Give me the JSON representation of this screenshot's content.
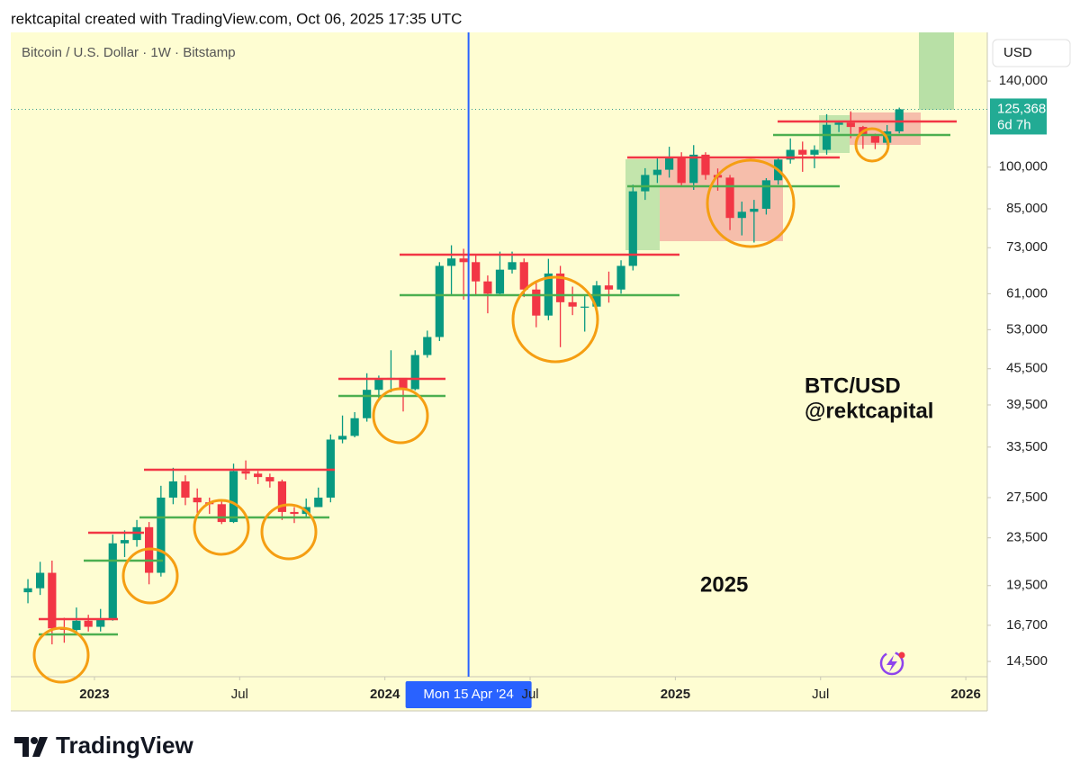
{
  "header": "rektcapital created with TradingView.com, Oct 06, 2025 17:35 UTC",
  "logo": "TradingView",
  "chart_data": {
    "type": "candlestick",
    "title": "Bitcoin / U.S. Dollar · 1W · Bitstamp",
    "currency": "USD",
    "log_scale": true,
    "up_color": "#089981",
    "down_color": "#f23645",
    "xlim": [
      2022.712,
      2026.074
    ],
    "xticks": [
      {
        "value": 2023,
        "label": "2023"
      },
      {
        "value": 2023.5,
        "label": "Jul"
      },
      {
        "value": 2024,
        "label": "2024"
      },
      {
        "value": 2024.5,
        "label": "Jul"
      },
      {
        "value": 2025,
        "label": "2025"
      },
      {
        "value": 2025.5,
        "label": "Jul"
      },
      {
        "value": 2026,
        "label": "2026"
      }
    ],
    "ylim": [
      13660,
      169300
    ],
    "yticks": [
      {
        "value": 140000,
        "label": "140,000"
      },
      {
        "value": 100000,
        "label": "100,000"
      },
      {
        "value": 85000,
        "label": "85,000"
      },
      {
        "value": 73000,
        "label": "73,000"
      },
      {
        "value": 61000,
        "label": "61,000"
      },
      {
        "value": 53000,
        "label": "53,000"
      },
      {
        "value": 45500,
        "label": "45,500"
      },
      {
        "value": 39500,
        "label": "39,500"
      },
      {
        "value": 33500,
        "label": "33,500"
      },
      {
        "value": 27500,
        "label": "27,500"
      },
      {
        "value": 23500,
        "label": "23,500"
      },
      {
        "value": 19500,
        "label": "19,500"
      },
      {
        "value": 16700,
        "label": "16,700"
      },
      {
        "value": 14500,
        "label": "14,500"
      }
    ],
    "x": [
      2022.771,
      2022.813,
      2022.854,
      2022.896,
      2022.938,
      2022.979,
      2023.021,
      2023.063,
      2023.104,
      2023.146,
      2023.188,
      2023.229,
      2023.271,
      2023.313,
      2023.354,
      2023.396,
      2023.438,
      2023.479,
      2023.521,
      2023.563,
      2023.604,
      2023.646,
      2023.688,
      2023.729,
      2023.771,
      2023.813,
      2023.854,
      2023.896,
      2023.938,
      2023.979,
      2024.021,
      2024.063,
      2024.104,
      2024.146,
      2024.188,
      2024.229,
      2024.271,
      2024.313,
      2024.354,
      2024.396,
      2024.438,
      2024.479,
      2024.521,
      2024.563,
      2024.604,
      2024.646,
      2024.688,
      2024.729,
      2024.771,
      2024.813,
      2024.854,
      2024.896,
      2024.938,
      2024.979,
      2025.021,
      2025.063,
      2025.104,
      2025.146,
      2025.188,
      2025.229,
      2025.271,
      2025.313,
      2025.354,
      2025.396,
      2025.438,
      2025.479,
      2025.521,
      2025.563,
      2025.604,
      2025.646,
      2025.688,
      2025.729,
      2025.771
    ],
    "open": [
      19000,
      19300,
      20500,
      16500,
      16400,
      17000,
      16600,
      17100,
      23000,
      23300,
      24500,
      20500,
      27500,
      29300,
      27500,
      27000,
      26800,
      25000,
      30500,
      30200,
      29800,
      29300,
      26000,
      25800,
      26500,
      27500,
      34500,
      35000,
      37500,
      41900,
      43600,
      43900,
      42000,
      48000,
      51500,
      68000,
      70000,
      69000,
      64000,
      61000,
      67000,
      69000,
      62000,
      56000,
      66000,
      59000,
      58000,
      58000,
      63000,
      62000,
      68000,
      91000,
      97000,
      99000,
      104000,
      94000,
      105000,
      97000,
      96000,
      82000,
      84000,
      85000,
      95000,
      103000,
      107000,
      105000,
      107000,
      118000,
      119000,
      117000,
      113000,
      110000,
      115000
    ],
    "high": [
      20000,
      21400,
      21500,
      17200,
      17900,
      17400,
      17800,
      23800,
      24200,
      25200,
      25000,
      28800,
      30900,
      30000,
      28500,
      27500,
      27200,
      31400,
      31800,
      30500,
      30200,
      29500,
      26500,
      27400,
      28600,
      35200,
      37900,
      38400,
      44700,
      44300,
      48900,
      43500,
      48900,
      52800,
      69000,
      73700,
      72700,
      71000,
      65500,
      71900,
      71900,
      70000,
      63800,
      69900,
      68000,
      62700,
      60600,
      64100,
      66500,
      69500,
      93400,
      99600,
      104000,
      108300,
      106000,
      109000,
      106000,
      99500,
      97000,
      87400,
      88000,
      95800,
      104000,
      111900,
      110500,
      108900,
      123000,
      120000,
      124400,
      117500,
      114000,
      117900,
      126200
    ],
    "low": [
      18200,
      18800,
      15500,
      15600,
      16200,
      16300,
      16300,
      17000,
      21800,
      22700,
      19600,
      20200,
      26800,
      26700,
      25900,
      25800,
      24800,
      24900,
      29500,
      29000,
      28600,
      25200,
      24900,
      25500,
      26500,
      27000,
      34000,
      34800,
      37000,
      40500,
      41500,
      38500,
      41800,
      47500,
      50700,
      60800,
      59600,
      60800,
      56500,
      60700,
      66000,
      60200,
      53500,
      55000,
      49500,
      56100,
      52600,
      57500,
      58900,
      61000,
      66800,
      88000,
      94000,
      96000,
      92500,
      91500,
      95200,
      91200,
      78200,
      76600,
      74500,
      83100,
      93400,
      101400,
      98200,
      99600,
      105000,
      114700,
      112000,
      107400,
      107300,
      109000,
      114100
    ],
    "close": [
      19300,
      20500,
      16500,
      16400,
      17000,
      16600,
      17100,
      23000,
      23300,
      24500,
      20500,
      27500,
      29300,
      27500,
      27000,
      26800,
      25000,
      30500,
      30200,
      29800,
      29300,
      26000,
      25800,
      26500,
      27500,
      34500,
      35000,
      37500,
      41900,
      43600,
      43900,
      42000,
      48000,
      51500,
      68000,
      70000,
      69000,
      64000,
      61000,
      67000,
      69000,
      62000,
      56000,
      66000,
      59000,
      58000,
      58000,
      63000,
      62000,
      68000,
      91000,
      97000,
      99000,
      104000,
      94000,
      105000,
      97000,
      96000,
      82000,
      84000,
      85000,
      95000,
      103000,
      107000,
      105000,
      107000,
      118000,
      119000,
      117000,
      113000,
      110000,
      115000,
      125368
    ],
    "last_price": {
      "value": 125368,
      "label": "125,368"
    },
    "countdown": "6d 7h",
    "crosshair": {
      "x": 2024.288,
      "label": "Mon 15 Apr '24"
    },
    "annotations": [
      "BTC/USD",
      "@rektcapital",
      "2025"
    ]
  }
}
